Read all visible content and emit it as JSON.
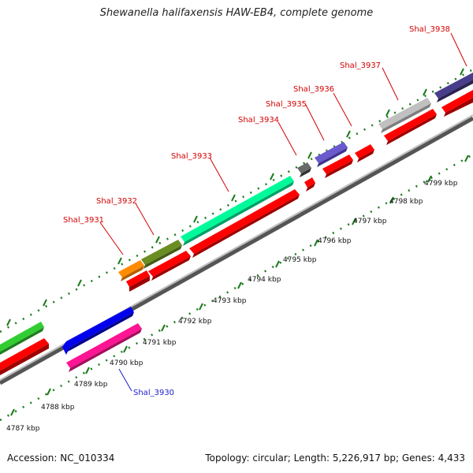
{
  "title": "Shewanella halifaxensis HAW-EB4, complete genome",
  "footer": {
    "accession": "Accession: NC_010334",
    "summary": "Topology: circular; Length: 5,226,917 bp; Genes: 4,433"
  },
  "colors": {
    "label_red": "#d40000",
    "label_blue": "#1a1acc",
    "tick_green": "#1a7a1a",
    "backbone": "#888888",
    "cds": "#ff0000"
  },
  "kbp_labels": [
    "4787 kbp",
    "4788 kbp",
    "4789 kbp",
    "4790 kbp",
    "4791 kbp",
    "4792 kbp",
    "4793 kbp",
    "4794 kbp",
    "4795 kbp",
    "4796 kbp",
    "4797 kbp",
    "4798 kbp",
    "4799 kbp"
  ],
  "genes": [
    {
      "name": "Shal_3930",
      "color": "#ff1493",
      "label_color": "blue"
    },
    {
      "name": "Shal_3931",
      "color": "#ff8c00",
      "label_color": "red"
    },
    {
      "name": "Shal_3932",
      "color": "#6b8e23",
      "label_color": "red"
    },
    {
      "name": "Shal_3933",
      "color": "#00fa9a",
      "label_color": "red"
    },
    {
      "name": "Shal_3934",
      "color": "#696969",
      "label_color": "red"
    },
    {
      "name": "Shal_3935",
      "color": "#ff0000",
      "label_color": "red"
    },
    {
      "name": "Shal_3936",
      "color": "#6a5acd",
      "label_color": "red"
    },
    {
      "name": "Shal_3937",
      "color": "#c0c0c0",
      "label_color": "red"
    },
    {
      "name": "Shal_3938",
      "color": "#483d8b",
      "label_color": "red"
    }
  ],
  "other_features": [
    {
      "color": "#32cd32"
    },
    {
      "color": "#0000ee"
    }
  ]
}
